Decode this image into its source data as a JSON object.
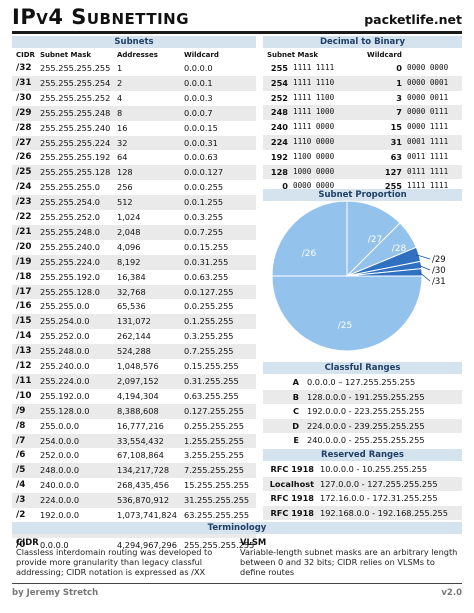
{
  "header": {
    "title": "IPv4 Subnetting",
    "site": "packetlife.net"
  },
  "subnets": {
    "title": "Subnets",
    "columns": [
      "CIDR",
      "Subnet Mask",
      "Addresses",
      "Wildcard"
    ],
    "rows": [
      [
        "/32",
        "255.255.255.255",
        "1",
        "0.0.0.0"
      ],
      [
        "/31",
        "255.255.255.254",
        "2",
        "0.0.0.1"
      ],
      [
        "/30",
        "255.255.255.252",
        "4",
        "0.0.0.3"
      ],
      [
        "/29",
        "255.255.255.248",
        "8",
        "0.0.0.7"
      ],
      [
        "/28",
        "255.255.255.240",
        "16",
        "0.0.0.15"
      ],
      [
        "/27",
        "255.255.255.224",
        "32",
        "0.0.0.31"
      ],
      [
        "/26",
        "255.255.255.192",
        "64",
        "0.0.0.63"
      ],
      [
        "/25",
        "255.255.255.128",
        "128",
        "0.0.0.127"
      ],
      [
        "/24",
        "255.255.255.0",
        "256",
        "0.0.0.255"
      ],
      [
        "/23",
        "255.255.254.0",
        "512",
        "0.0.1.255"
      ],
      [
        "/22",
        "255.255.252.0",
        "1,024",
        "0.0.3.255"
      ],
      [
        "/21",
        "255.255.248.0",
        "2,048",
        "0.0.7.255"
      ],
      [
        "/20",
        "255.255.240.0",
        "4,096",
        "0.0.15.255"
      ],
      [
        "/19",
        "255.255.224.0",
        "8,192",
        "0.0.31.255"
      ],
      [
        "/18",
        "255.255.192.0",
        "16,384",
        "0.0.63.255"
      ],
      [
        "/17",
        "255.255.128.0",
        "32,768",
        "0.0.127.255"
      ],
      [
        "/16",
        "255.255.0.0",
        "65,536",
        "0.0.255.255"
      ],
      [
        "/15",
        "255.254.0.0",
        "131,072",
        "0.1.255.255"
      ],
      [
        "/14",
        "255.252.0.0",
        "262,144",
        "0.3.255.255"
      ],
      [
        "/13",
        "255.248.0.0",
        "524,288",
        "0.7.255.255"
      ],
      [
        "/12",
        "255.240.0.0",
        "1,048,576",
        "0.15.255.255"
      ],
      [
        "/11",
        "255.224.0.0",
        "2,097,152",
        "0.31.255.255"
      ],
      [
        "/10",
        "255.192.0.0",
        "4,194,304",
        "0.63.255.255"
      ],
      [
        "/9",
        "255.128.0.0",
        "8,388,608",
        "0.127.255.255"
      ],
      [
        "/8",
        "255.0.0.0",
        "16,777,216",
        "0.255.255.255"
      ],
      [
        "/7",
        "254.0.0.0",
        "33,554,432",
        "1.255.255.255"
      ],
      [
        "/6",
        "252.0.0.0",
        "67,108,864",
        "3.255.255.255"
      ],
      [
        "/5",
        "248.0.0.0",
        "134,217,728",
        "7.255.255.255"
      ],
      [
        "/4",
        "240.0.0.0",
        "268,435,456",
        "15.255.255.255"
      ],
      [
        "/3",
        "224.0.0.0",
        "536,870,912",
        "31.255.255.255"
      ],
      [
        "/2",
        "192.0.0.0",
        "1,073,741,824",
        "63.255.255.255"
      ],
      [
        "/1",
        "128.0.0.0",
        "2,147,483,648",
        "127.255.255.255"
      ],
      [
        "/0",
        "0.0.0.0",
        "4,294,967,296",
        "255.255.255.255"
      ]
    ]
  },
  "decimal_to_binary": {
    "title": "Decimal to Binary",
    "columns": [
      "Subnet Mask",
      "Wildcard"
    ],
    "rows": [
      [
        "255",
        "1111 1111",
        "0",
        "0000 0000"
      ],
      [
        "254",
        "1111 1110",
        "1",
        "0000 0001"
      ],
      [
        "252",
        "1111 1100",
        "3",
        "0000 0011"
      ],
      [
        "248",
        "1111 1000",
        "7",
        "0000 0111"
      ],
      [
        "240",
        "1111 0000",
        "15",
        "0000 1111"
      ],
      [
        "224",
        "1110 0000",
        "31",
        "0001 1111"
      ],
      [
        "192",
        "1100 0000",
        "63",
        "0011 1111"
      ],
      [
        "128",
        "1000 0000",
        "127",
        "0111 1111"
      ],
      [
        "0",
        "0000 0000",
        "255",
        "1111 1111"
      ]
    ]
  },
  "subnet_proportion": {
    "title": "Subnet Proportion",
    "colors": {
      "slice": "#93c2ec",
      "stroke": "#ffffff",
      "small_slice": "#2f70c0"
    }
  },
  "chart_data": {
    "type": "pie",
    "labels": [
      "/25",
      "/26",
      "/27",
      "/28",
      "/29",
      "/30",
      "/31"
    ],
    "values": [
      50,
      25,
      12.5,
      6.25,
      3.125,
      1.5625,
      1.5625
    ]
  },
  "classful_ranges": {
    "title": "Classful Ranges",
    "rows": [
      [
        "A",
        "0.0.0.0 – 127.255.255.255"
      ],
      [
        "B",
        "128.0.0.0 - 191.255.255.255"
      ],
      [
        "C",
        "192.0.0.0 - 223.255.255.255"
      ],
      [
        "D",
        "224.0.0.0 - 239.255.255.255"
      ],
      [
        "E",
        "240.0.0.0 - 255.255.255.255"
      ]
    ]
  },
  "reserved_ranges": {
    "title": "Reserved Ranges",
    "rows": [
      [
        "RFC 1918",
        "10.0.0.0 - 10.255.255.255"
      ],
      [
        "Localhost",
        "127.0.0.0 - 127.255.255.255"
      ],
      [
        "RFC 1918",
        "172.16.0.0 - 172.31.255.255"
      ],
      [
        "RFC 1918",
        "192.168.0.0 - 192.168.255.255"
      ]
    ]
  },
  "terminology": {
    "title": "Terminology",
    "terms": [
      {
        "term": "CIDR",
        "definition": "Classless interdomain routing was developed to provide more granularity than legacy classful addressing; CIDR notation is expressed as /XX"
      },
      {
        "term": "VLSM",
        "definition": "Variable-length subnet masks are an arbitrary length between 0 and 32 bits; CIDR relies on VLSMs to define routes"
      }
    ]
  },
  "footer": {
    "author": "by Jeremy Stretch",
    "version": "v2.0"
  }
}
